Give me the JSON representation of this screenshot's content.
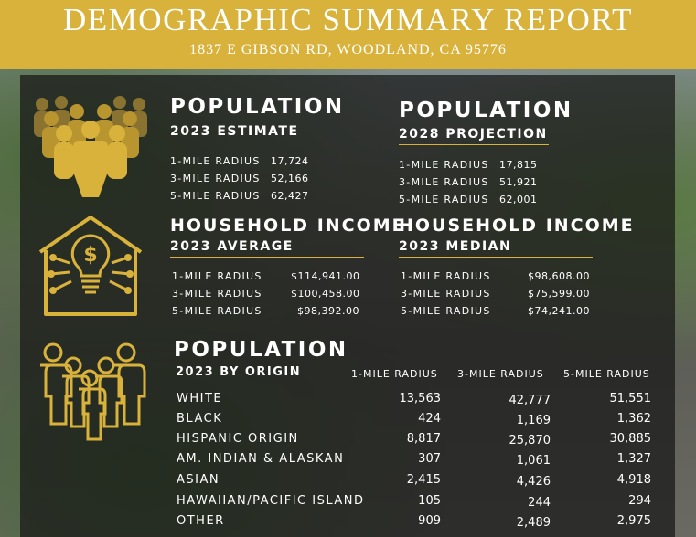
{
  "header": {
    "title": "DEMOGRAPHIC SUMMARY REPORT",
    "address": "1837 E GIBSON RD, WOODLAND, CA 95776"
  },
  "colors": {
    "gold": "#d9b23c",
    "panel": "#161616"
  },
  "icons": [
    "people-crowd-icon",
    "house-lightbulb-dollar-icon",
    "family-group-icon"
  ],
  "pop2023": {
    "title": "POPULATION",
    "subtitle": "2023 ESTIMATE",
    "rows": [
      {
        "label": "1-MILE RADIUS",
        "value": "17,724"
      },
      {
        "label": "3-MILE RADIUS",
        "value": "52,166"
      },
      {
        "label": "5-MILE RADIUS",
        "value": "62,427"
      }
    ]
  },
  "pop2028": {
    "title": "POPULATION",
    "subtitle": "2028 PROJECTION",
    "rows": [
      {
        "label": "1-MILE RADIUS",
        "value": "17,815"
      },
      {
        "label": "3-MILE RADIUS",
        "value": "51,921"
      },
      {
        "label": "5-MILE RADIUS",
        "value": "62,001"
      }
    ]
  },
  "hhAvg": {
    "title": "HOUSEHOLD INCOME",
    "subtitle": "2023 AVERAGE",
    "rows": [
      {
        "label": "1-MILE RADIUS",
        "value": "$114,941.00"
      },
      {
        "label": "3-MILE RADIUS",
        "value": "$100,458.00"
      },
      {
        "label": "5-MILE RADIUS",
        "value": "$98,392.00"
      }
    ]
  },
  "hhMed": {
    "title": "HOUSEHOLD INCOME",
    "subtitle": "2023 MEDIAN",
    "rows": [
      {
        "label": "1-MILE RADIUS",
        "value": "$98,608.00"
      },
      {
        "label": "3-MILE RADIUS",
        "value": "$75,599.00"
      },
      {
        "label": "5-MILE RADIUS",
        "value": "$74,241.00"
      }
    ]
  },
  "origin": {
    "title": "POPULATION",
    "subtitle": "2023 BY ORIGIN",
    "columns": [
      "1-MILE RADIUS",
      "3-MILE RADIUS",
      "5-MILE RADIUS"
    ],
    "rows": [
      {
        "label": "WHITE",
        "values": [
          "13,563",
          "42,777",
          "51,551"
        ]
      },
      {
        "label": "BLACK",
        "values": [
          "424",
          "1,169",
          "1,362"
        ]
      },
      {
        "label": "HISPANIC ORIGIN",
        "values": [
          "8,817",
          "25,870",
          "30,885"
        ]
      },
      {
        "label": "AM. INDIAN & ALASKAN",
        "values": [
          "307",
          "1,061",
          "1,327"
        ]
      },
      {
        "label": "ASIAN",
        "values": [
          "2,415",
          "4,426",
          "4,918"
        ]
      },
      {
        "label": "HAWAIIAN/PACIFIC ISLAND",
        "values": [
          "105",
          "244",
          "294"
        ]
      },
      {
        "label": "OTHER",
        "values": [
          "909",
          "2,489",
          "2,975"
        ]
      }
    ]
  }
}
